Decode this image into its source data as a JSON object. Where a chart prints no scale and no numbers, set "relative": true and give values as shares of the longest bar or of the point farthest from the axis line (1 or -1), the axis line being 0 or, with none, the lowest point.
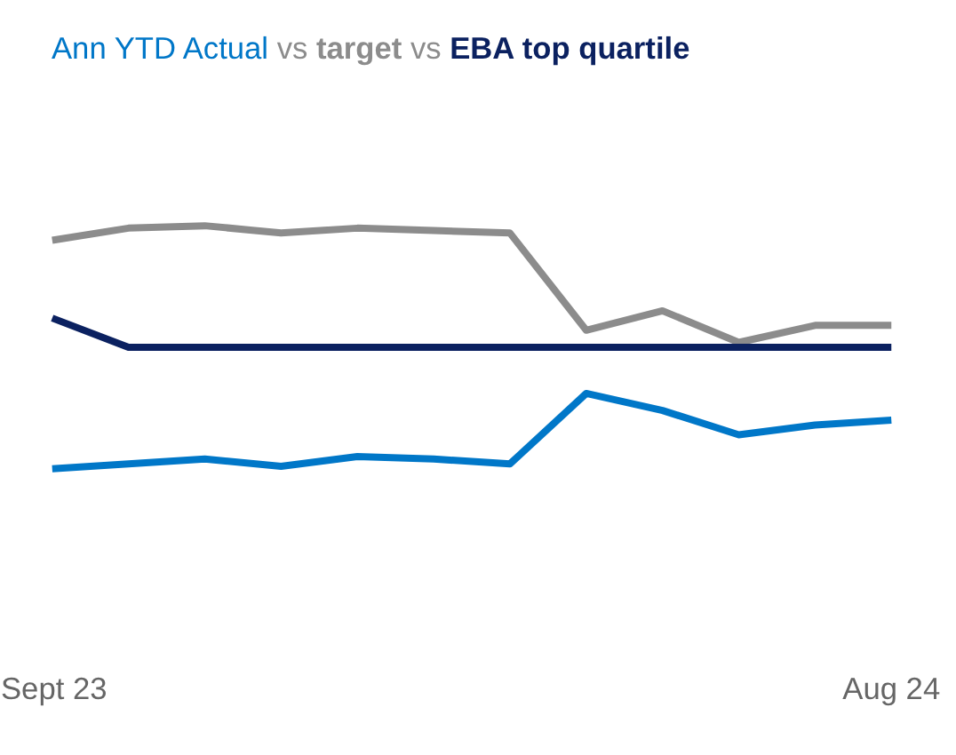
{
  "chart_data": {
    "type": "line",
    "relative": true,
    "legend": "top left",
    "grid": false,
    "marker": "none",
    "line_style": "solid",
    "categories": [
      "Sept 23",
      null,
      null,
      null,
      null,
      null,
      null,
      null,
      null,
      null,
      null,
      "Aug 24"
    ],
    "annotations": [
      "vs",
      "vs"
    ],
    "series": [
      {
        "name": "Ann YTD Actual",
        "color": "#0077c8",
        "values": [
          0,
          0.02,
          0.04,
          0.01,
          0.05,
          0.04,
          0.02,
          0.31,
          0.24,
          0.14,
          0.18,
          0.2
        ]
      },
      {
        "name": "target",
        "color": "#8c8c8c",
        "values": [
          0.94,
          0.99,
          1,
          0.97,
          0.99,
          0.98,
          0.97,
          0.57,
          0.65,
          0.52,
          0.59,
          0.59
        ]
      },
      {
        "name": "EBA top quartile",
        "color": "#0b2160",
        "values": [
          0.62,
          0.5,
          0.5,
          0.5,
          0.5,
          0.5,
          0.5,
          0.5,
          0.5,
          0.5,
          0.5,
          0.5
        ]
      }
    ]
  }
}
